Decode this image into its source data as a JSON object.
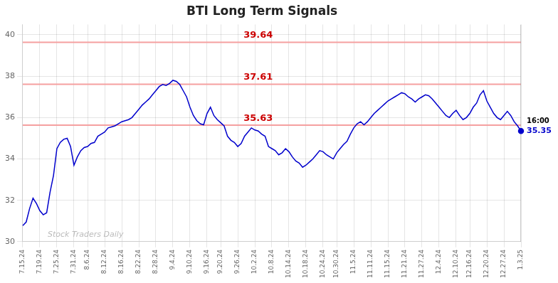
{
  "chart_data": {
    "type": "line",
    "title": "BTI Long Term Signals",
    "categories": [
      "7.15.24",
      null,
      null,
      null,
      null,
      "7.19.24",
      null,
      null,
      null,
      null,
      "7.25.24",
      null,
      null,
      null,
      null,
      "7.31.24",
      null,
      null,
      null,
      "8.6.24",
      null,
      null,
      null,
      null,
      "8.12.24",
      null,
      null,
      null,
      null,
      "8.16.24",
      null,
      null,
      null,
      null,
      "8.22.24",
      null,
      null,
      null,
      null,
      "8.28.24",
      null,
      null,
      null,
      null,
      "9.4.24",
      null,
      null,
      null,
      null,
      "9.10.24",
      null,
      null,
      null,
      null,
      "9.16.24",
      null,
      null,
      null,
      "9.20.24",
      null,
      null,
      null,
      null,
      "9.26.24",
      null,
      null,
      null,
      null,
      "10.2.24",
      null,
      null,
      null,
      null,
      "10.8.24",
      null,
      null,
      null,
      null,
      "10.14.24",
      null,
      null,
      null,
      null,
      "10.18.24",
      null,
      null,
      null,
      null,
      "10.24.24",
      null,
      null,
      null,
      "10.30.24",
      null,
      null,
      null,
      null,
      "11.5.24",
      null,
      null,
      null,
      null,
      "11.11.24",
      null,
      null,
      null,
      null,
      "11.15.24",
      null,
      null,
      null,
      null,
      "11.21.24",
      null,
      null,
      null,
      null,
      "11.27.24",
      null,
      null,
      null,
      null,
      "12.4.24",
      null,
      null,
      null,
      null,
      "12.10.24",
      null,
      null,
      null,
      "12.16.24",
      null,
      null,
      null,
      null,
      "12.20.24",
      null,
      null,
      null,
      null,
      "12.27.24",
      null,
      null,
      null,
      null,
      "1.3.25"
    ],
    "values": [
      30.78,
      30.95,
      31.6,
      32.1,
      31.85,
      31.5,
      31.3,
      31.4,
      32.4,
      33.2,
      34.5,
      34.8,
      34.95,
      35.0,
      34.6,
      33.7,
      34.1,
      34.4,
      34.55,
      34.6,
      34.75,
      34.8,
      35.1,
      35.2,
      35.3,
      35.5,
      35.55,
      35.6,
      35.7,
      35.8,
      35.85,
      35.9,
      36.0,
      36.2,
      36.4,
      36.6,
      36.75,
      36.9,
      37.1,
      37.3,
      37.5,
      37.6,
      37.55,
      37.65,
      37.8,
      37.75,
      37.6,
      37.3,
      37.0,
      36.5,
      36.1,
      35.85,
      35.7,
      35.65,
      36.2,
      36.5,
      36.1,
      35.9,
      35.75,
      35.6,
      35.1,
      34.9,
      34.8,
      34.6,
      34.75,
      35.1,
      35.3,
      35.5,
      35.4,
      35.35,
      35.2,
      35.1,
      34.6,
      34.5,
      34.4,
      34.2,
      34.3,
      34.5,
      34.35,
      34.1,
      33.9,
      33.8,
      33.6,
      33.7,
      33.85,
      34.0,
      34.2,
      34.4,
      34.35,
      34.2,
      34.1,
      34.0,
      34.3,
      34.5,
      34.7,
      34.85,
      35.2,
      35.5,
      35.7,
      35.8,
      35.65,
      35.8,
      36.0,
      36.2,
      36.35,
      36.5,
      36.65,
      36.8,
      36.9,
      37.0,
      37.1,
      37.2,
      37.15,
      37.0,
      36.9,
      36.75,
      36.9,
      37.0,
      37.1,
      37.05,
      36.9,
      36.7,
      36.5,
      36.3,
      36.1,
      36.0,
      36.2,
      36.35,
      36.1,
      35.9,
      36.0,
      36.2,
      36.5,
      36.7,
      37.1,
      37.3,
      36.8,
      36.5,
      36.2,
      36.0,
      35.9,
      36.1,
      36.3,
      36.1,
      35.8,
      35.6,
      35.35
    ],
    "color": "#0000cc",
    "ylim": [
      30.0,
      40.5
    ],
    "yticks": [
      30,
      32,
      34,
      36,
      38,
      40
    ],
    "grid": true,
    "hlines": [
      {
        "value": 39.64,
        "label": "39.64",
        "color": "#f5a0a0",
        "label_color": "#cc0000"
      },
      {
        "value": 37.61,
        "label": "37.61",
        "color": "#f5a0a0",
        "label_color": "#cc0000"
      },
      {
        "value": 35.63,
        "label": "35.63",
        "color": "#f5a0a0",
        "label_color": "#cc0000"
      }
    ],
    "watermark": "Stock Traders Daily",
    "last_point": {
      "value": 35.35,
      "label": "35.35",
      "time_label": "16:00"
    }
  }
}
